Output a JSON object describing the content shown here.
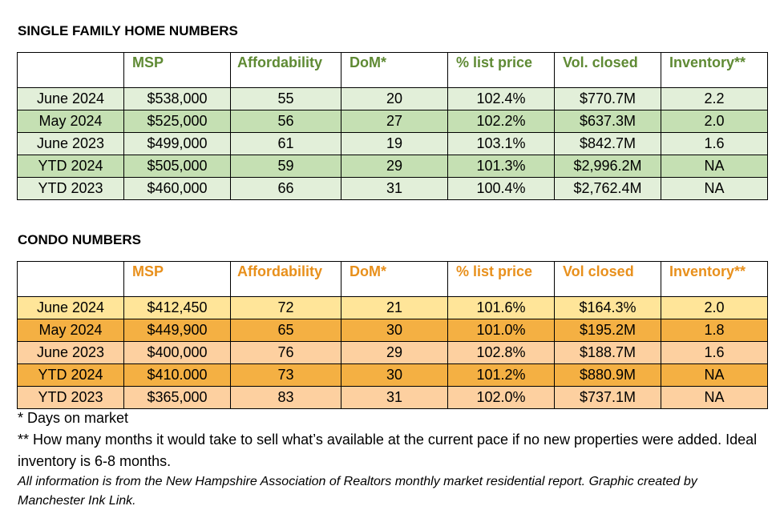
{
  "single_family": {
    "title": "SINGLE FAMILY HOME NUMBERS",
    "headers": [
      "",
      "MSP",
      "Affordability",
      "DoM*",
      "% list price",
      "Vol. closed",
      "Inventory**"
    ],
    "rows": [
      [
        "June 2024",
        "$538,000",
        "55",
        "20",
        "102.4%",
        "$770.7M",
        "2.2"
      ],
      [
        "May 2024",
        "$525,000",
        "56",
        "27",
        "102.2%",
        "$637.3M",
        "2.0"
      ],
      [
        "June 2023",
        "$499,000",
        "61",
        "19",
        "103.1%",
        "$842.7M",
        "1.6"
      ],
      [
        "YTD 2024",
        "$505,000",
        "59",
        "29",
        "101.3%",
        "$2,996.2M",
        "NA"
      ],
      [
        "YTD 2023",
        "$460,000",
        "66",
        "31",
        "100.4%",
        "$2,762.4M",
        "NA"
      ]
    ],
    "colors": {
      "header_text": "#5f8a34",
      "row_light": "#e2efd9",
      "row_dark": "#c5e0b3"
    }
  },
  "condo": {
    "title": "CONDO NUMBERS",
    "headers": [
      "",
      "MSP",
      "Affordability",
      "DoM*",
      "% list price",
      "Vol closed",
      "Inventory**"
    ],
    "rows": [
      [
        "June 2024",
        "$412,450",
        "72",
        "21",
        "101.6%",
        "$164.3%",
        "2.0"
      ],
      [
        "May 2024",
        "$449,900",
        "65",
        "30",
        "101.0%",
        "$195.2M",
        "1.8"
      ],
      [
        "June 2023",
        "$400,000",
        "76",
        "29",
        "102.8%",
        "$188.7M",
        "1.6"
      ],
      [
        "YTD 2024",
        "$410.000",
        "73",
        "30",
        "101.2%",
        "$880.9M",
        "NA"
      ],
      [
        "YTD 2023",
        "$365,000",
        "83",
        "31",
        "102.0%",
        "$737.1M",
        "NA"
      ]
    ],
    "colors": {
      "header_text": "#e8901c",
      "row_light": "#ffe599",
      "row_dark": "#f4b043",
      "row_peach": "#fdd0a0"
    }
  },
  "footnotes": {
    "dom": "* Days on market",
    "inventory": "** How many months it would take to sell what’s available at the current pace if no new properties were added. Ideal inventory is 6-8 months.",
    "source": "All information is from the New Hampshire Association of Realtors monthly market residential report. Graphic created by Manchester Ink Link."
  }
}
